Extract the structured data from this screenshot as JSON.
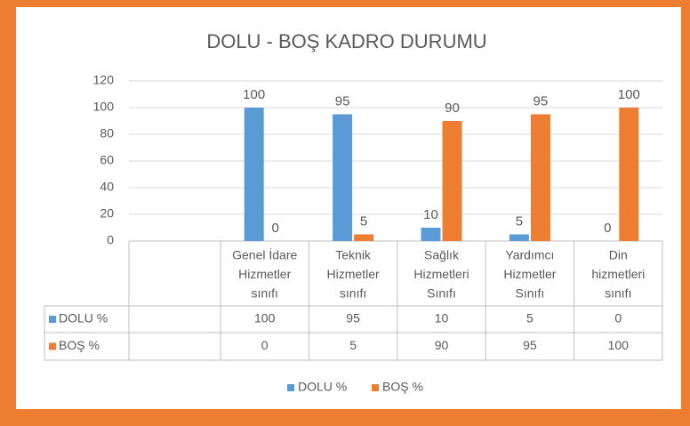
{
  "chart_data": {
    "type": "bar",
    "title": "DOLU - BOŞ KADRO DURUMU",
    "categories": [
      [
        "Genel İdare",
        "Hizmetler",
        "sınıfı"
      ],
      [
        "Teknik",
        "Hizmetler",
        "sınıfı"
      ],
      [
        "Sağlık",
        "Hizmetleri",
        "Sınıfı"
      ],
      [
        "Yardımcı",
        "Hizmetler",
        "Sınıfı"
      ],
      [
        "Din",
        "hizmetleri",
        "sınıfı"
      ]
    ],
    "series": [
      {
        "name": "DOLU %",
        "color": "#5B9BD5",
        "values": [
          100,
          95,
          10,
          5,
          0
        ]
      },
      {
        "name": "BOŞ %",
        "color": "#ED7D31",
        "values": [
          0,
          5,
          90,
          95,
          100
        ]
      }
    ],
    "ylim": [
      0,
      120
    ],
    "yticks": [
      0,
      20,
      40,
      60,
      80,
      100,
      120
    ],
    "grid": true,
    "legend": "bottom",
    "data_table": true
  }
}
